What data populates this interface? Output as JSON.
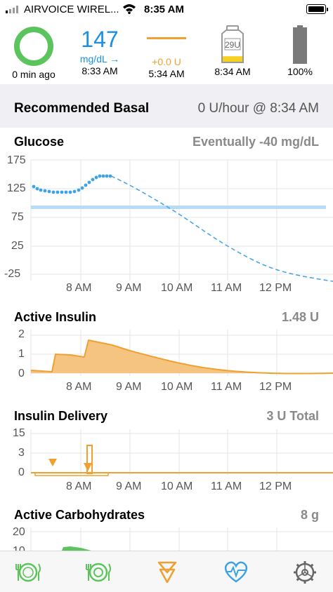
{
  "status_bar": {
    "carrier": "AIRVOICE WIREL...",
    "time": "8:35 AM"
  },
  "hud": {
    "loop_age": "0 min ago",
    "glucose_value": "147",
    "glucose_unit": "mg/dL →",
    "glucose_time": "8:33 AM",
    "temp_basal": "+0.0 U",
    "temp_basal_time": "5:34 AM",
    "reservoir_label": "29U",
    "reservoir_time": "8:34 AM",
    "battery_percent": "100%",
    "reservoir_level": 0.2
  },
  "recommended_basal": {
    "label": "Recommended Basal",
    "value": "0 U/hour @ 8:34 AM"
  },
  "glucose_chart": {
    "title": "Glucose",
    "value": "Eventually -40 mg/dL",
    "y_ticks": [
      "175",
      "125",
      "75",
      "25",
      "-25"
    ],
    "x_ticks": [
      "8 AM",
      "9 AM",
      "10 AM",
      "11 AM",
      "12 PM"
    ]
  },
  "active_insulin_chart": {
    "title": "Active Insulin",
    "value": "1.48 U",
    "y_ticks": [
      "2",
      "1",
      "0"
    ],
    "x_ticks": [
      "8 AM",
      "9 AM",
      "10 AM",
      "11 AM",
      "12 PM"
    ]
  },
  "insulin_delivery_chart": {
    "title": "Insulin Delivery",
    "value": "3 U Total",
    "y_ticks": [
      "15",
      "3",
      "0"
    ],
    "x_ticks": [
      "8 AM",
      "9 AM",
      "10 AM",
      "11 AM",
      "12 PM"
    ]
  },
  "active_carbs_chart": {
    "title": "Active Carbohydrates",
    "value": "8 g",
    "y_ticks": [
      "20",
      "10"
    ]
  },
  "tabs": [
    {
      "name": "carbs-tab",
      "icon": "plate-fork-icon"
    },
    {
      "name": "meal-bolus-tab",
      "icon": "plate-fork-bolus-icon"
    },
    {
      "name": "bolus-tab",
      "icon": "bolus-arrow-icon"
    },
    {
      "name": "health-tab",
      "icon": "heart-icon"
    },
    {
      "name": "settings-tab",
      "icon": "gear-icon"
    }
  ],
  "colors": {
    "glucose": "#3ea3e6",
    "target_range": "#b8dcf6",
    "insulin": "#f0a030",
    "carbs": "#5cc45c",
    "loop": "#5cc45c"
  }
}
